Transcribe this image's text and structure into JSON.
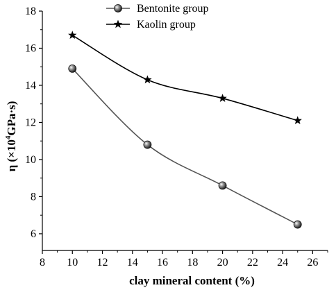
{
  "chart_data": {
    "type": "line",
    "title": "",
    "xlabel": "clay mineral content (%)",
    "ylabel": {
      "symbol": "η",
      "open": " (×10",
      "exponent": "4",
      "unit": "GPa·s)"
    },
    "xlim": [
      8,
      27
    ],
    "ylim": [
      5.1,
      18
    ],
    "xticks": [
      "8",
      "10",
      "12",
      "14",
      "16",
      "18",
      "20",
      "22",
      "24",
      "26"
    ],
    "yticks": [
      "6",
      "8",
      "10",
      "12",
      "14",
      "16",
      "18"
    ],
    "legend_position": "top-center",
    "grid": false,
    "series": [
      {
        "name": "Bentonite group",
        "marker": "sphere",
        "color": "#555555",
        "x": [
          10,
          15,
          20,
          25
        ],
        "y": [
          14.9,
          10.8,
          8.6,
          6.5
        ]
      },
      {
        "name": "Kaolin group",
        "marker": "star",
        "color": "#000000",
        "x": [
          10,
          15,
          20,
          25
        ],
        "y": [
          16.7,
          14.3,
          13.3,
          12.1
        ]
      }
    ]
  }
}
